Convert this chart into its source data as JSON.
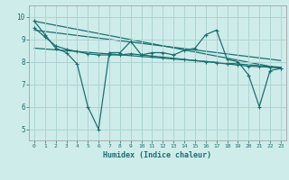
{
  "bg_color": "#ceecea",
  "grid_color": "#aed4d1",
  "line_color": "#1a7070",
  "xlabel": "Humidex (Indice chaleur)",
  "xlim": [
    -0.5,
    23.5
  ],
  "ylim": [
    4.5,
    10.5
  ],
  "yticks": [
    5,
    6,
    7,
    8,
    9,
    10
  ],
  "xticks": [
    0,
    1,
    2,
    3,
    4,
    5,
    6,
    7,
    8,
    9,
    10,
    11,
    12,
    13,
    14,
    15,
    16,
    17,
    18,
    19,
    20,
    21,
    22,
    23
  ],
  "series1_x": [
    0,
    1,
    2,
    3,
    4,
    5,
    6,
    7,
    8,
    9,
    10,
    11,
    12,
    13,
    14,
    15,
    16,
    17,
    18,
    19,
    20,
    21,
    22,
    23
  ],
  "series1_y": [
    9.8,
    9.2,
    8.6,
    8.4,
    7.9,
    6.0,
    5.0,
    8.4,
    8.4,
    8.9,
    8.3,
    8.4,
    8.4,
    8.3,
    8.5,
    8.6,
    9.2,
    9.4,
    8.1,
    8.0,
    7.4,
    6.0,
    7.6,
    7.7
  ],
  "series2_x": [
    0,
    1,
    2,
    3,
    4,
    5,
    6,
    7,
    8,
    9,
    10,
    11,
    12,
    13,
    14,
    15,
    16,
    17,
    18,
    19,
    20,
    21,
    22,
    23
  ],
  "series2_y": [
    9.5,
    9.1,
    8.7,
    8.55,
    8.45,
    8.35,
    8.3,
    8.3,
    8.3,
    8.35,
    8.3,
    8.25,
    8.2,
    8.15,
    8.1,
    8.05,
    8.0,
    7.95,
    7.9,
    7.85,
    7.8,
    7.78,
    7.75,
    7.72
  ],
  "trend1_x": [
    0,
    23
  ],
  "trend1_y": [
    9.8,
    7.7
  ],
  "trend2_x": [
    0,
    23
  ],
  "trend2_y": [
    9.4,
    8.05
  ],
  "trend3_x": [
    0,
    23
  ],
  "trend3_y": [
    8.6,
    7.75
  ]
}
